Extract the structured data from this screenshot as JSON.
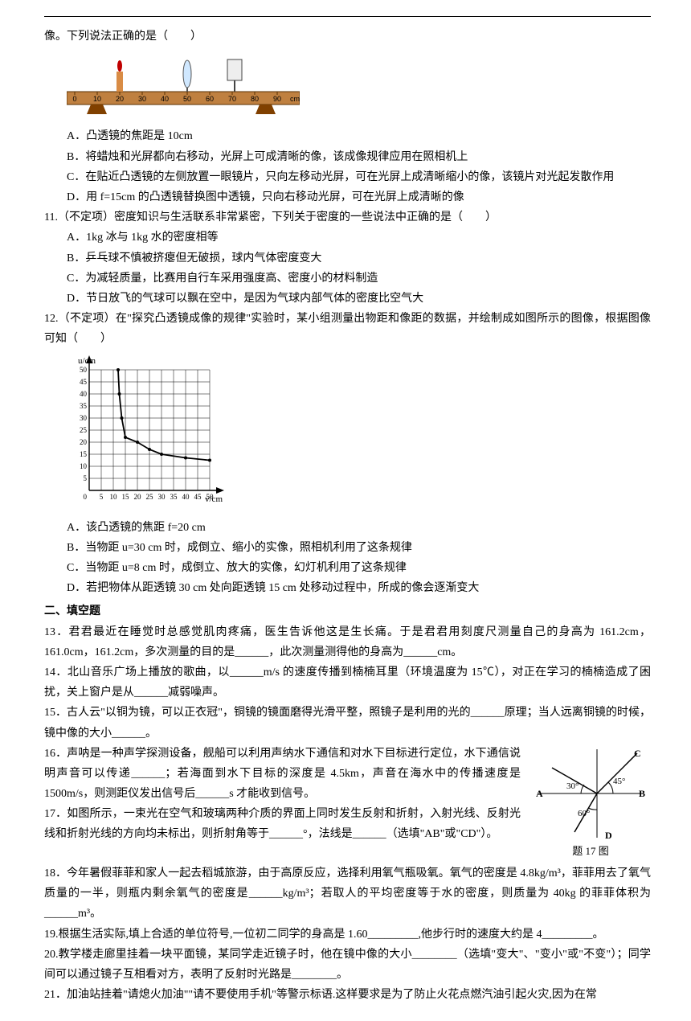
{
  "intro_line": "像。下列说法正确的是（　　）",
  "fig_optics": {
    "ruler_labels": [
      "0",
      "10",
      "20",
      "30",
      "40",
      "50",
      "60",
      "70",
      "80",
      "90",
      "cm"
    ],
    "ruler_color": "#804000",
    "bench_color": "#bf8040",
    "candle_body": "#d98c45",
    "flame_color": "#a00000",
    "lens_color": "#808080",
    "screen_color": "#e8e8e8"
  },
  "q10_opts": {
    "A": "A．凸透镜的焦距是 10cm",
    "B": "B．将蜡烛和光屏都向右移动，光屏上可成清晰的像，该成像规律应用在照相机上",
    "C": "C．在贴近凸透镜的左侧放置一眼镜片，只向左移动光屏，可在光屏上成清晰缩小的像，该镜片对光起发散作用",
    "D": "D．用 f=15cm 的凸透镜替换图中透镜，只向右移动光屏，可在光屏上成清晰的像"
  },
  "q11": {
    "stem": "11.（不定项）密度知识与生活联系非常紧密，下列关于密度的一些说法中正确的是（　　）",
    "A": "A．1kg 冰与 1kg 水的密度相等",
    "B": "B．乒乓球不慎被挤瘪但无破损，球内气体密度变大",
    "C": "C．为减轻质量，比赛用自行车采用强度高、密度小的材料制造",
    "D": "D．节日放飞的气球可以飘在空中，是因为气球内部气体的密度比空气大"
  },
  "q12": {
    "stem": "12.（不定项）在\"探究凸透镜成像的规律\"实验时，某小组测量出物距和像距的数据，并绘制成如图所示的图像，根据图像可知（　　）",
    "A": "A．该凸透镜的焦距 f=20 cm",
    "B": "B．当物距 u=30 cm 时，成倒立、缩小的实像，照相机利用了这条规律",
    "C": "C．当物距 u=8 cm 时，成倒立、放大的实像，幻灯机利用了这条规律",
    "D": "D．若把物体从距透镜 30 cm 处向距透镜 15 cm 处移动过程中，所成的像会逐渐变大"
  },
  "graph": {
    "y_label": "u/cm",
    "x_label": "v/cm",
    "y_ticks": [
      "5",
      "10",
      "15",
      "20",
      "25",
      "30",
      "35",
      "40",
      "45",
      "50"
    ],
    "x_ticks": [
      "5",
      "10",
      "15",
      "20",
      "25",
      "30",
      "35",
      "40",
      "45",
      "50"
    ],
    "curve_points": [
      [
        12,
        50
      ],
      [
        12.5,
        40
      ],
      [
        13.5,
        30
      ],
      [
        15,
        22
      ],
      [
        20,
        20
      ],
      [
        25,
        17
      ],
      [
        30,
        15
      ],
      [
        40,
        13.5
      ],
      [
        50,
        12.5
      ]
    ],
    "grid_color": "#000",
    "bg_color": "#fff",
    "tick_fontsize": 9
  },
  "section_fill": "二、填空题",
  "q13": "13．君君最近在睡觉时总感觉肌肉疼痛，医生告诉他这是生长痛。于是君君用刻度尺测量自己的身高为 161.2cm，161.0cm，161.2cm，多次测量的目的是______，此次测量测得他的身高为______cm。",
  "q14": "14．北山音乐广场上播放的歌曲，以______m/s 的速度传播到楠楠耳里（环境温度为 15℃），对正在学习的楠楠造成了困扰，关上窗户是从______减弱噪声。",
  "q15": "15．古人云\"以铜为镜，可以正衣冠\"，铜镜的镜面磨得光滑平整，照镜子是利用的光的______原理；当人远离铜镜的时候，镜中像的大小______。",
  "q16": "16．声呐是一种声学探测设备，舰船可以利用声纳水下通信和对水下目标进行定位，水下通信说明声音可以传递______；若海面到水下目标的深度是 4.5km，声音在海水中的传播速度是 1500m/s，则测距仪发出信号后______s 才能收到信号。",
  "q17": "17．如图所示，一束光在空气和玻璃两种介质的界面上同时发生反射和折射，入射光线、反射光线和折射光线的方向均未标出，则折射角等于______°，法线是______（选填\"AB\"或\"CD\"）。",
  "fig17_caption": "题 17 图",
  "fig17": {
    "A": "A",
    "B": "B",
    "C": "C",
    "D": "D",
    "ang30": "30°",
    "ang45": "45°",
    "ang60": "60°"
  },
  "q18": "18．今年暑假菲菲和家人一起去稻城旅游，由于高原反应，选择利用氧气瓶吸氧。氧气的密度是 4.8kg/m³，菲菲用去了氧气质量的一半，则瓶内剩余氧气的密度是______kg/m³；若取人的平均密度等于水的密度，则质量为 40kg 的菲菲体积为______m³。",
  "q19": "19.根据生活实际,填上合适的单位符号,一位初二同学的身高是 1.60_________,他步行时的速度大约是 4_________。",
  "q20": "20.教学楼走廊里挂着一块平面镜，某同学走近镜子时，他在镜中像的大小________（选填\"变大\"、\"变小\"或\"不变\"）；同学间可以通过镜子互相看对方，表明了反射时光路是________。",
  "q21": "21．加油站挂着\"请熄火加油\"\"请不要使用手机\"等警示标语.这样要求是为了防止火花点燃汽油引起火灾,因为在常"
}
